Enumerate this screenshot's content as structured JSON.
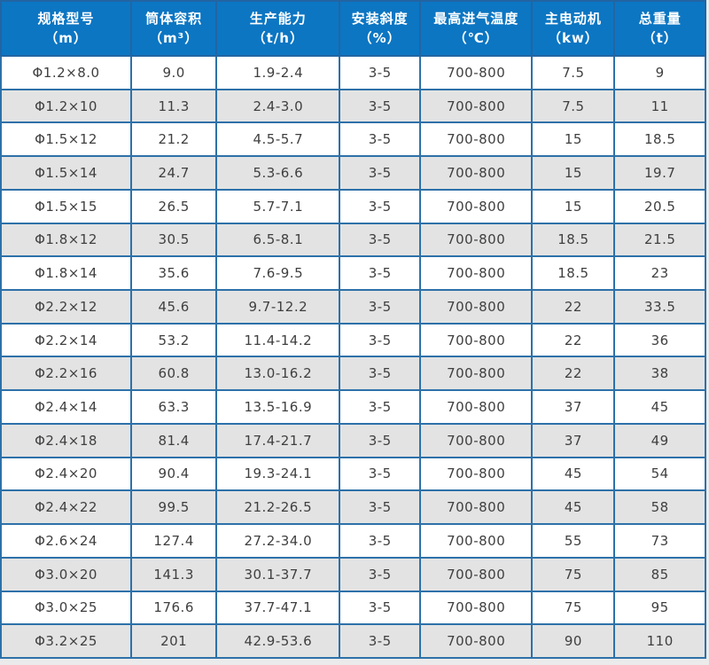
{
  "table": {
    "columns": [
      {
        "name": "规格型号",
        "unit": "（m）"
      },
      {
        "name": "筒体容积",
        "unit": "（m³）"
      },
      {
        "name": "生产能力",
        "unit": "（t/h）"
      },
      {
        "name": "安装斜度",
        "unit": "（%）"
      },
      {
        "name": "最高进气温度",
        "unit": "（℃）"
      },
      {
        "name": "主电动机",
        "unit": "（kw）"
      },
      {
        "name": "总重量",
        "unit": "（t）"
      }
    ],
    "rows": [
      [
        "Φ1.2×8.0",
        "9.0",
        "1.9-2.4",
        "3-5",
        "700-800",
        "7.5",
        "9"
      ],
      [
        "Φ1.2×10",
        "11.3",
        "2.4-3.0",
        "3-5",
        "700-800",
        "7.5",
        "11"
      ],
      [
        "Φ1.5×12",
        "21.2",
        "4.5-5.7",
        "3-5",
        "700-800",
        "15",
        "18.5"
      ],
      [
        "Φ1.5×14",
        "24.7",
        "5.3-6.6",
        "3-5",
        "700-800",
        "15",
        "19.7"
      ],
      [
        "Φ1.5×15",
        "26.5",
        "5.7-7.1",
        "3-5",
        "700-800",
        "15",
        "20.5"
      ],
      [
        "Φ1.8×12",
        "30.5",
        "6.5-8.1",
        "3-5",
        "700-800",
        "18.5",
        "21.5"
      ],
      [
        "Φ1.8×14",
        "35.6",
        "7.6-9.5",
        "3-5",
        "700-800",
        "18.5",
        "23"
      ],
      [
        "Φ2.2×12",
        "45.6",
        "9.7-12.2",
        "3-5",
        "700-800",
        "22",
        "33.5"
      ],
      [
        "Φ2.2×14",
        "53.2",
        "11.4-14.2",
        "3-5",
        "700-800",
        "22",
        "36"
      ],
      [
        "Φ2.2×16",
        "60.8",
        "13.0-16.2",
        "3-5",
        "700-800",
        "22",
        "38"
      ],
      [
        "Φ2.4×14",
        "63.3",
        "13.5-16.9",
        "3-5",
        "700-800",
        "37",
        "45"
      ],
      [
        "Φ2.4×18",
        "81.4",
        "17.4-21.7",
        "3-5",
        "700-800",
        "37",
        "49"
      ],
      [
        "Φ2.4×20",
        "90.4",
        "19.3-24.1",
        "3-5",
        "700-800",
        "45",
        "54"
      ],
      [
        "Φ2.4×22",
        "99.5",
        "21.2-26.5",
        "3-5",
        "700-800",
        "45",
        "58"
      ],
      [
        "Φ2.6×24",
        "127.4",
        "27.2-34.0",
        "3-5",
        "700-800",
        "55",
        "73"
      ],
      [
        "Φ3.0×20",
        "141.3",
        "30.1-37.7",
        "3-5",
        "700-800",
        "75",
        "85"
      ],
      [
        "Φ3.0×25",
        "176.6",
        "37.7-47.1",
        "3-5",
        "700-800",
        "75",
        "95"
      ],
      [
        "Φ3.2×25",
        "201",
        "42.9-53.6",
        "3-5",
        "700-800",
        "90",
        "110"
      ]
    ]
  },
  "colors": {
    "header_bg": "#0c76c3",
    "header_text": "#ffffff",
    "grid_border": "#2d71a9",
    "outer_border": "#1e5f96",
    "row_bg": "#ffffff",
    "row_alt_bg": "#e3e3e3",
    "body_text": "#3f3f3f",
    "page_bg": "#ebebeb"
  }
}
